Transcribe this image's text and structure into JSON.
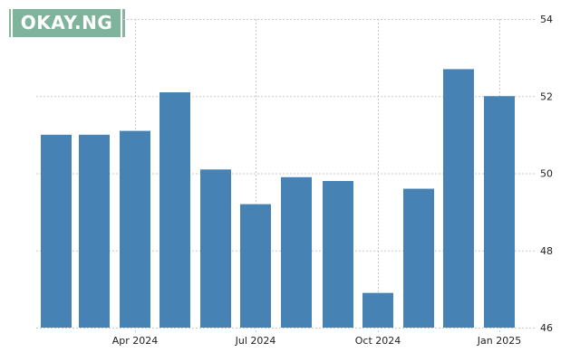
{
  "logo": {
    "text": "OKAY.NG"
  },
  "chart_data": {
    "type": "bar",
    "title": "",
    "xlabel": "",
    "ylabel": "",
    "categories": [
      "Feb 2024",
      "Mar 2024",
      "Apr 2024",
      "May 2024",
      "Jun 2024",
      "Jul 2024",
      "Aug 2024",
      "Sep 2024",
      "Oct 2024",
      "Nov 2024",
      "Dec 2024",
      "Jan 2025"
    ],
    "values": [
      51.0,
      51.0,
      51.1,
      52.1,
      50.1,
      49.2,
      49.9,
      49.8,
      46.9,
      49.6,
      52.7,
      52.0
    ],
    "ylim": [
      46,
      54
    ],
    "yticks": [
      "54",
      "52",
      "50",
      "48",
      "46"
    ],
    "xtick_labels": [
      "Apr 2024",
      "Jul 2024",
      "Oct 2024",
      "Jan 2025"
    ],
    "grid": true,
    "y_axis_position": "right",
    "bar_color": "#4682b4",
    "legend": null
  }
}
